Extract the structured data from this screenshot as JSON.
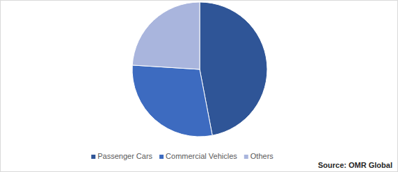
{
  "chart_data": {
    "type": "pie",
    "categories": [
      "Passenger Cars",
      "Commercial Vehicles",
      "Others"
    ],
    "values": [
      47,
      29,
      24
    ],
    "colors": [
      "#2f5597",
      "#3d6bc0",
      "#a9b5dd"
    ],
    "legend": "bottom",
    "annotations": [
      "Source: OMR Global"
    ]
  }
}
